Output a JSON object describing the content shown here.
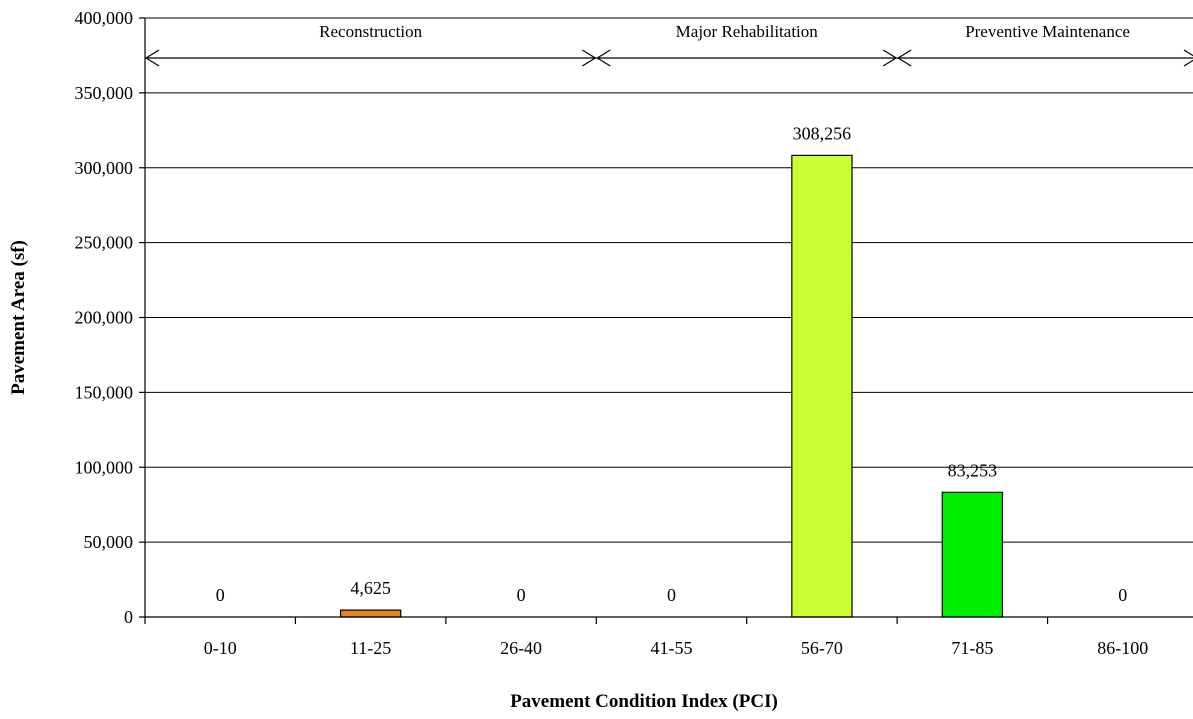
{
  "chart_data": {
    "type": "bar",
    "xlabel": "Pavement Condition Index (PCI)",
    "ylabel": "Pavement Area (sf)",
    "ylim": [
      0,
      400000
    ],
    "ytick_step": 50000,
    "y_tick_labels": [
      "0",
      "50,000",
      "100,000",
      "150,000",
      "200,000",
      "250,000",
      "300,000",
      "350,000",
      "400,000"
    ],
    "grid": "horizontal",
    "categories": [
      "0-10",
      "11-25",
      "26-40",
      "41-55",
      "56-70",
      "71-85",
      "86-100"
    ],
    "values": [
      0,
      4625,
      0,
      0,
      308256,
      83253,
      0
    ],
    "data_labels": [
      "0",
      "4,625",
      "0",
      "0",
      "308,256",
      "83,253",
      "0"
    ],
    "bar_colors": [
      "#000000",
      "#e8821e",
      "#000000",
      "#000000",
      "#ccff33",
      "#00ee00",
      "#000000"
    ],
    "bands": [
      {
        "label": "Reconstruction",
        "from_category": 0,
        "to_category": 2
      },
      {
        "label": "Major Rehabilitation",
        "from_category": 3,
        "to_category": 4
      },
      {
        "label": "Preventive Maintenance",
        "from_category": 5,
        "to_category": 6
      }
    ]
  }
}
